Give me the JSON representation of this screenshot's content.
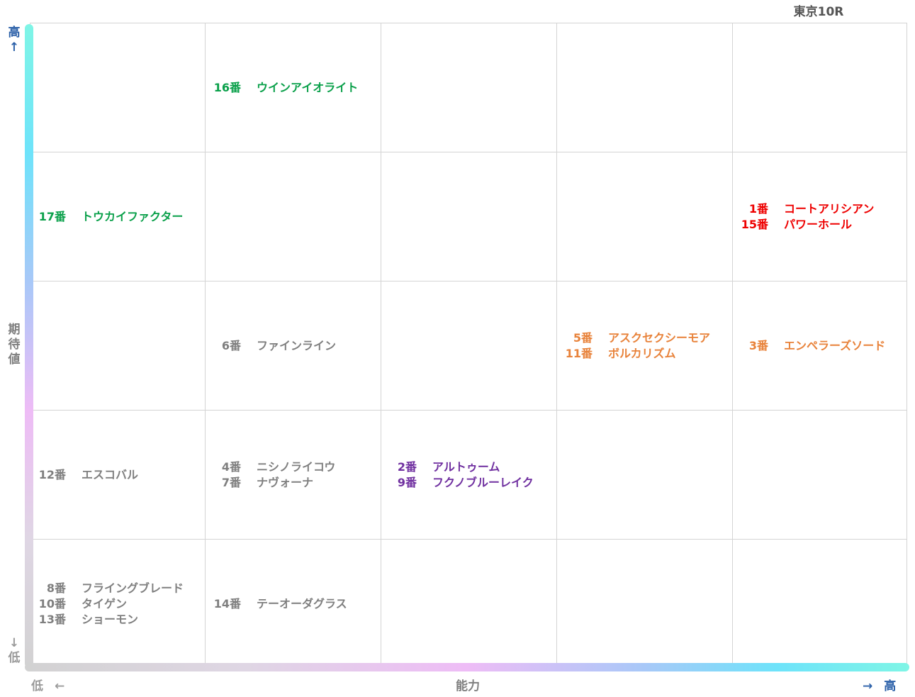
{
  "race_title": "東京10R",
  "axes": {
    "y_label": "期待値",
    "x_label": "能力",
    "y_high": "高",
    "y_high_arrow": "↑",
    "y_low": "低",
    "y_low_arrow": "↓",
    "x_low": "低",
    "x_low_arrow": "←",
    "x_high": "高",
    "x_high_arrow": "→"
  },
  "colors": {
    "gray": "#7f7f7f",
    "green": "#0aa04a",
    "red": "#ee0000",
    "orange": "#e8823a",
    "purple": "#7030a0",
    "axis_blue": "#2a5fa8"
  },
  "chart_data": {
    "type": "table",
    "x_levels": 5,
    "y_levels": 5,
    "x_axis": "能力",
    "y_axis": "期待値",
    "cells": [
      {
        "ability": 2,
        "expectation": 5,
        "color": "green",
        "entries": [
          {
            "num": "16番",
            "name": "ウインアイオライト"
          }
        ]
      },
      {
        "ability": 1,
        "expectation": 4,
        "color": "green",
        "entries": [
          {
            "num": "17番",
            "name": "トウカイファクター"
          }
        ]
      },
      {
        "ability": 5,
        "expectation": 4,
        "color": "red",
        "entries": [
          {
            "num": "1番",
            "name": "コートアリシアン"
          },
          {
            "num": "15番",
            "name": "パワーホール"
          }
        ]
      },
      {
        "ability": 2,
        "expectation": 3,
        "color": "gray",
        "entries": [
          {
            "num": "6番",
            "name": "ファインライン"
          }
        ]
      },
      {
        "ability": 4,
        "expectation": 3,
        "color": "orange",
        "entries": [
          {
            "num": "5番",
            "name": "アスクセクシーモア"
          },
          {
            "num": "11番",
            "name": "ボルカリズム"
          }
        ]
      },
      {
        "ability": 5,
        "expectation": 3,
        "color": "orange",
        "entries": [
          {
            "num": "3番",
            "name": "エンペラーズソード"
          }
        ]
      },
      {
        "ability": 1,
        "expectation": 2,
        "color": "gray",
        "entries": [
          {
            "num": "12番",
            "name": "エスコバル"
          }
        ]
      },
      {
        "ability": 2,
        "expectation": 2,
        "color": "gray",
        "entries": [
          {
            "num": "4番",
            "name": "ニシノライコウ"
          },
          {
            "num": "7番",
            "name": "ナヴォーナ"
          }
        ]
      },
      {
        "ability": 3,
        "expectation": 2,
        "color": "purple",
        "entries": [
          {
            "num": "2番",
            "name": "アルトゥーム"
          },
          {
            "num": "9番",
            "name": "フクノブルーレイク"
          }
        ]
      },
      {
        "ability": 1,
        "expectation": 1,
        "color": "gray",
        "entries": [
          {
            "num": "8番",
            "name": "フライングブレード"
          },
          {
            "num": "10番",
            "name": "タイゲン"
          },
          {
            "num": "13番",
            "name": "ショーモン"
          }
        ]
      },
      {
        "ability": 2,
        "expectation": 1,
        "color": "gray",
        "entries": [
          {
            "num": "14番",
            "name": "テーオーダグラス"
          }
        ]
      }
    ]
  }
}
